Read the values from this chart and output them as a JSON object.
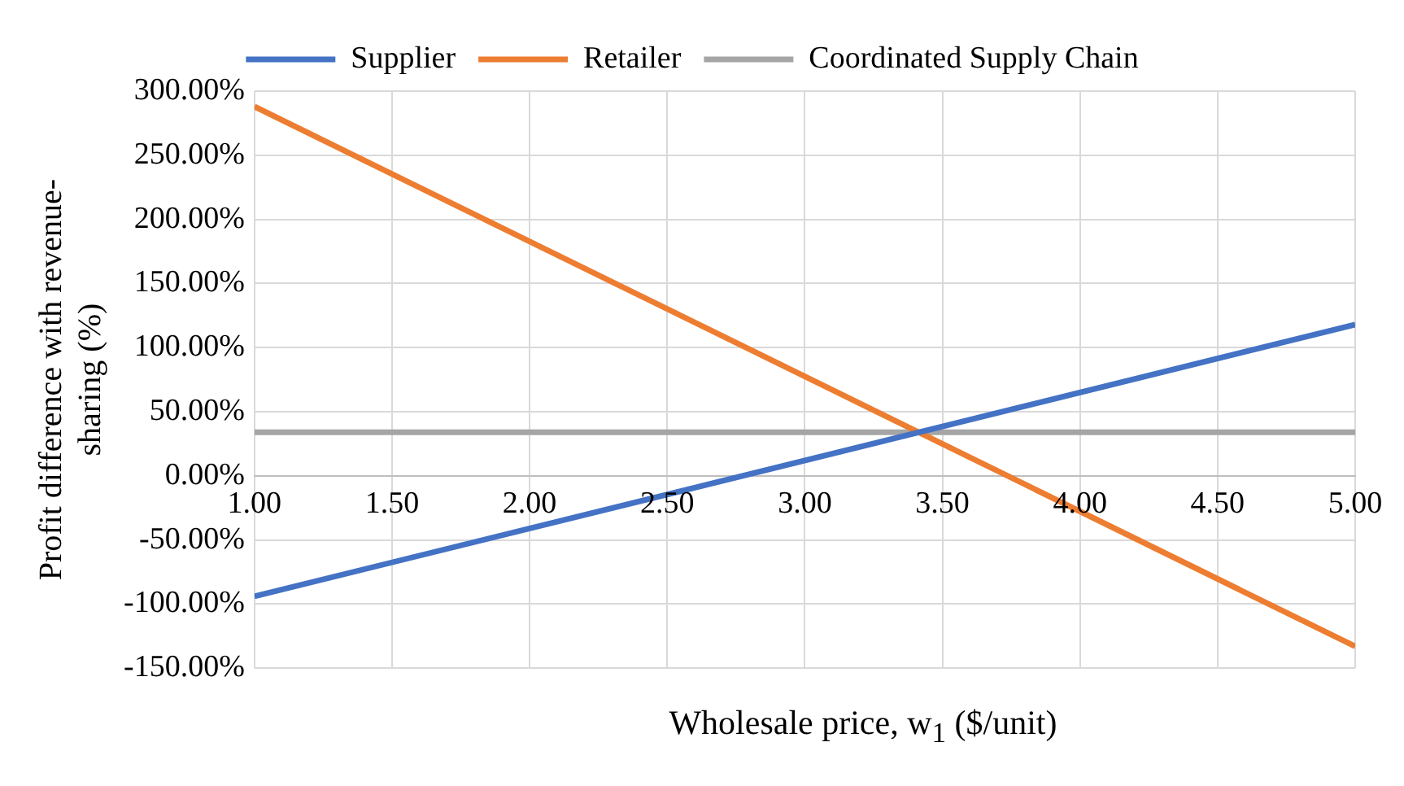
{
  "chart_data": {
    "type": "line",
    "xlabel": "Wholesale price, w$_{1}$ ($/unit)",
    "ylabel": "Profit difference with revenue-sharing (%)",
    "x": [
      1,
      5
    ],
    "series": [
      {
        "name": "Supplier",
        "color": "#4472c4",
        "values": [
          -94,
          118
        ]
      },
      {
        "name": "Retailer",
        "color": "#ed7d31",
        "values": [
          288,
          -133
        ]
      },
      {
        "name": "Coordinated Supply Chain",
        "color": "#a5a5a5",
        "values": [
          34,
          34
        ]
      }
    ],
    "xlim": [
      1,
      5
    ],
    "xticks": [
      {
        "value": 1,
        "label": "1.00"
      },
      {
        "value": 1.5,
        "label": "1.50"
      },
      {
        "value": 2,
        "label": "2.00"
      },
      {
        "value": 2.5,
        "label": "2.50"
      },
      {
        "value": 3,
        "label": "3.00"
      },
      {
        "value": 3.5,
        "label": "3.50"
      },
      {
        "value": 4,
        "label": "4.00"
      },
      {
        "value": 4.5,
        "label": "4.50"
      },
      {
        "value": 5,
        "label": "5.00"
      }
    ],
    "ylim": [
      -150,
      300
    ],
    "yticks": [
      {
        "value": -150,
        "label": "-150.00%"
      },
      {
        "value": -100,
        "label": "-100.00%"
      },
      {
        "value": -50,
        "label": "-50.00%"
      },
      {
        "value": 0,
        "label": "0.00%"
      },
      {
        "value": 50,
        "label": "50.00%"
      },
      {
        "value": 100,
        "label": "100.00%"
      },
      {
        "value": 150,
        "label": "150.00%"
      },
      {
        "value": 200,
        "label": "200.00%"
      },
      {
        "value": 250,
        "label": "250.00%"
      },
      {
        "value": 300,
        "label": "300.00%"
      }
    ],
    "grid": true,
    "legend": "top",
    "marker": "none",
    "line_style": "solid"
  }
}
